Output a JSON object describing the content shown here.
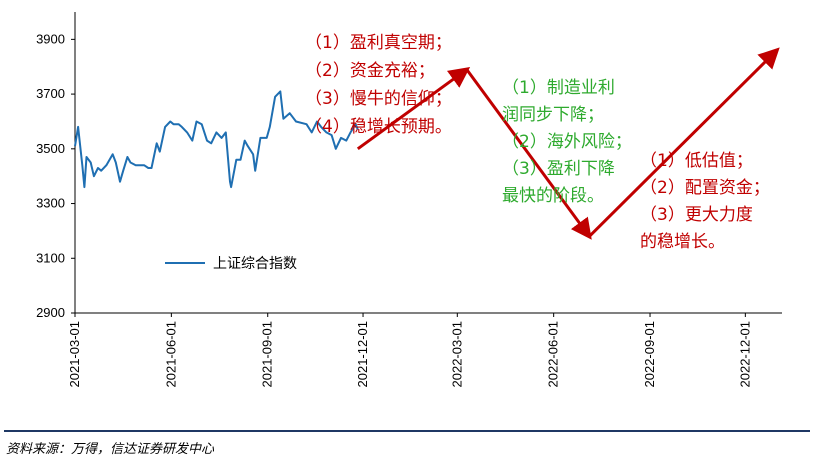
{
  "chart_data": {
    "type": "line",
    "title": "",
    "ylim": [
      2900,
      4000
    ],
    "y_ticks": [
      "2900",
      "3100",
      "3300",
      "3500",
      "3700",
      "3900"
    ],
    "x_ticks": [
      "2021-03-01",
      "2021-06-01",
      "2021-09-01",
      "2021-12-01",
      "2022-03-01",
      "2022-06-01",
      "2022-09-01",
      "2022-12-01"
    ],
    "legend": {
      "label": "上证综合指数",
      "placement": "lower-left",
      "color": "#1f6fb2"
    },
    "series": [
      {
        "name": "上证综合指数",
        "color": "#1f6fb2",
        "points": [
          [
            "2021-03-01",
            3510
          ],
          [
            "2021-03-04",
            3580
          ],
          [
            "2021-03-08",
            3440
          ],
          [
            "2021-03-10",
            3360
          ],
          [
            "2021-03-12",
            3470
          ],
          [
            "2021-03-16",
            3450
          ],
          [
            "2021-03-19",
            3400
          ],
          [
            "2021-03-23",
            3430
          ],
          [
            "2021-03-26",
            3420
          ],
          [
            "2021-03-31",
            3440
          ],
          [
            "2021-04-06",
            3480
          ],
          [
            "2021-04-09",
            3450
          ],
          [
            "2021-04-13",
            3380
          ],
          [
            "2021-04-16",
            3420
          ],
          [
            "2021-04-20",
            3470
          ],
          [
            "2021-04-23",
            3450
          ],
          [
            "2021-04-28",
            3440
          ],
          [
            "2021-05-06",
            3440
          ],
          [
            "2021-05-10",
            3430
          ],
          [
            "2021-05-13",
            3430
          ],
          [
            "2021-05-18",
            3520
          ],
          [
            "2021-05-21",
            3490
          ],
          [
            "2021-05-26",
            3580
          ],
          [
            "2021-05-31",
            3600
          ],
          [
            "2021-06-03",
            3590
          ],
          [
            "2021-06-08",
            3590
          ],
          [
            "2021-06-11",
            3580
          ],
          [
            "2021-06-16",
            3560
          ],
          [
            "2021-06-21",
            3530
          ],
          [
            "2021-06-25",
            3600
          ],
          [
            "2021-06-30",
            3590
          ],
          [
            "2021-07-05",
            3530
          ],
          [
            "2021-07-09",
            3520
          ],
          [
            "2021-07-14",
            3560
          ],
          [
            "2021-07-19",
            3540
          ],
          [
            "2021-07-23",
            3560
          ],
          [
            "2021-07-27",
            3380
          ],
          [
            "2021-07-28",
            3360
          ],
          [
            "2021-08-02",
            3460
          ],
          [
            "2021-08-06",
            3460
          ],
          [
            "2021-08-10",
            3530
          ],
          [
            "2021-08-13",
            3510
          ],
          [
            "2021-08-18",
            3480
          ],
          [
            "2021-08-20",
            3420
          ],
          [
            "2021-08-25",
            3540
          ],
          [
            "2021-08-31",
            3540
          ],
          [
            "2021-09-03",
            3580
          ],
          [
            "2021-09-08",
            3690
          ],
          [
            "2021-09-13",
            3710
          ],
          [
            "2021-09-16",
            3610
          ],
          [
            "2021-09-22",
            3630
          ],
          [
            "2021-09-28",
            3600
          ],
          [
            "2021-10-08",
            3590
          ],
          [
            "2021-10-13",
            3560
          ],
          [
            "2021-10-18",
            3600
          ],
          [
            "2021-10-22",
            3580
          ],
          [
            "2021-10-27",
            3560
          ],
          [
            "2021-11-01",
            3550
          ],
          [
            "2021-11-05",
            3500
          ],
          [
            "2021-11-10",
            3540
          ],
          [
            "2021-11-15",
            3530
          ],
          [
            "2021-11-19",
            3560
          ],
          [
            "2021-11-24",
            3590
          ],
          [
            "2021-11-26",
            3570
          ]
        ]
      }
    ],
    "projection": {
      "color": "#c00000",
      "points": [
        [
          "2021-11-26",
          3500
        ],
        [
          "2022-03-10",
          3790
        ],
        [
          "2022-07-05",
          3180
        ],
        [
          "2022-12-31",
          3860
        ]
      ]
    },
    "annotations": [
      {
        "color": "#c00000",
        "lines": [
          "（1）盈利真空期；",
          "（2）资金充裕；",
          "（3）慢牛的信仰；",
          "（4）稳增长预期。"
        ]
      },
      {
        "color": "#2eaa2e",
        "lines": [
          "（1）制造业利",
          "润同步下降；",
          "（2）海外风险；",
          "（3）盈利下降",
          "最快的阶段。"
        ]
      },
      {
        "color": "#c00000",
        "lines": [
          "（1）低估值；",
          "（2）配置资金；",
          "（3）更大力度",
          "的稳增长。"
        ]
      }
    ]
  },
  "source": "资料来源：万得，信达证券研发中心"
}
